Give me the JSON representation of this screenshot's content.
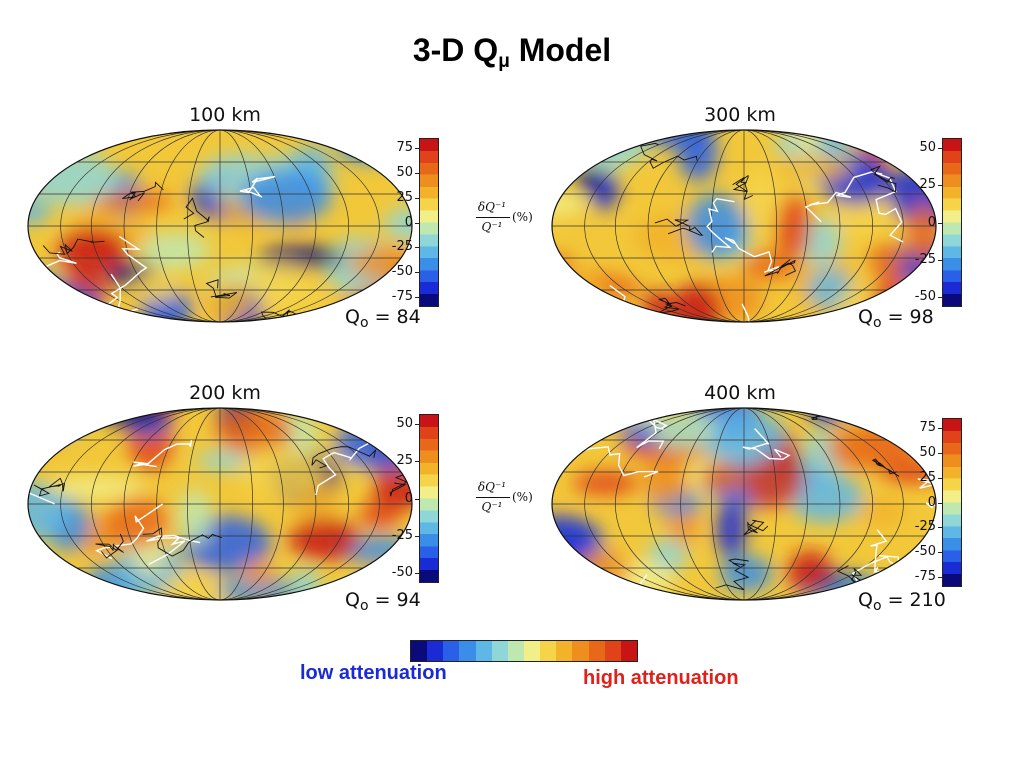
{
  "title": {
    "main": "3-D Q",
    "sub": "μ",
    "suffix": " Model"
  },
  "fraction_label": {
    "numerator": "δQ⁻¹",
    "denominator": "Q⁻¹",
    "unit": "(%)"
  },
  "q0_prefix": "Q",
  "q0_sub": "o",
  "panels": [
    {
      "id": "p100",
      "title": "100 km",
      "q0_value": "= 84",
      "ticks": [
        "75",
        "50",
        "25",
        "0",
        "-25",
        "-50",
        "-75"
      ],
      "show_fraction": true,
      "seed": 1
    },
    {
      "id": "p300",
      "title": "300 km",
      "q0_value": "= 98",
      "ticks": [
        "50",
        "25",
        "0",
        "-25",
        "-50"
      ],
      "show_fraction": false,
      "seed": 2
    },
    {
      "id": "p200",
      "title": "200 km",
      "q0_value": "= 94",
      "ticks": [
        "50",
        "25",
        "0",
        "-25",
        "-50"
      ],
      "show_fraction": true,
      "seed": 3
    },
    {
      "id": "p400",
      "title": "400 km",
      "q0_value": "= 210",
      "ticks": [
        "75",
        "50",
        "25",
        "0",
        "-25",
        "-50",
        "-75"
      ],
      "show_fraction": false,
      "seed": 4
    }
  ],
  "legend": {
    "low": "low attenuation",
    "high": "high attenuation"
  },
  "colors": {
    "scale": [
      "#0a0a7a",
      "#1a2bd6",
      "#2a5fe8",
      "#3a8ee8",
      "#5fb7e6",
      "#8fd6d8",
      "#bfe8b0",
      "#f2ef8a",
      "#f6d44a",
      "#f2b32a",
      "#ee8e1e",
      "#e8681a",
      "#e0431a",
      "#c81414"
    ],
    "plate_boundaries": "#ffffff",
    "coastlines": "#111111"
  }
}
